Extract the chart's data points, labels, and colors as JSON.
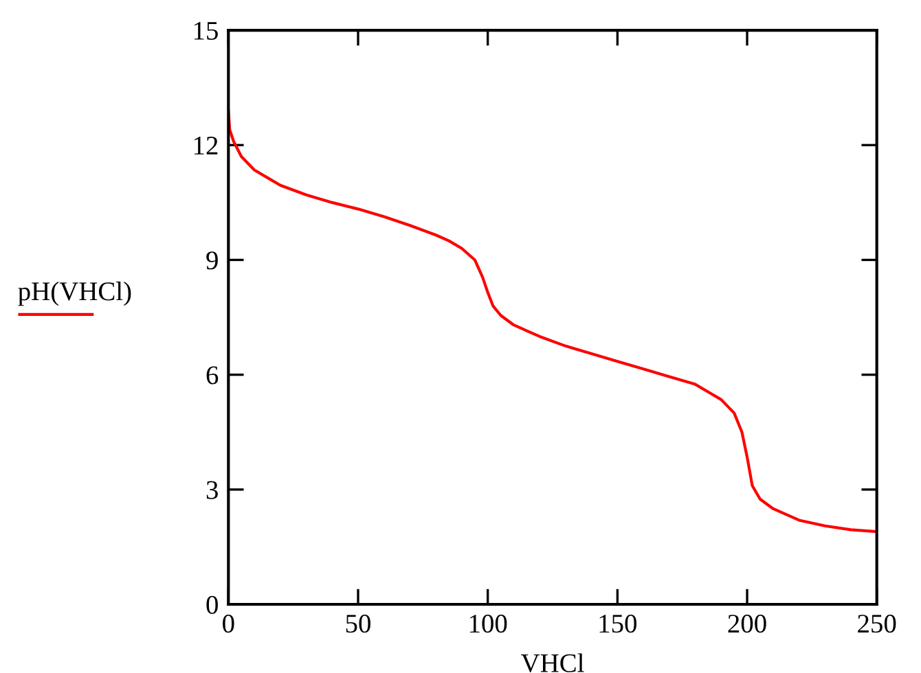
{
  "chart_data": {
    "type": "line",
    "xlabel": "VHCl",
    "ylabel": "pH(VHCl)",
    "xlim": [
      0,
      250
    ],
    "ylim": [
      0,
      15
    ],
    "xticks": [
      0,
      50,
      100,
      150,
      200,
      250
    ],
    "yticks": [
      0,
      3,
      6,
      9,
      12,
      15
    ],
    "grid": false,
    "legend": false,
    "marker": "none",
    "line_style": "solid",
    "series": [
      {
        "color": "#ff0000",
        "x": [
          0,
          0.5,
          2,
          5,
          10,
          15,
          20,
          30,
          40,
          50,
          60,
          70,
          80,
          85,
          90,
          95,
          98,
          100,
          102,
          105,
          110,
          120,
          130,
          140,
          150,
          160,
          170,
          180,
          185,
          190,
          195,
          198,
          200,
          202,
          205,
          210,
          220,
          230,
          240,
          250
        ],
        "values": [
          12.9,
          12.4,
          12.1,
          11.7,
          11.35,
          11.15,
          10.95,
          10.7,
          10.5,
          10.33,
          10.13,
          9.9,
          9.65,
          9.5,
          9.3,
          9.0,
          8.55,
          8.15,
          7.8,
          7.55,
          7.3,
          7.0,
          6.75,
          6.55,
          6.35,
          6.15,
          5.95,
          5.75,
          5.55,
          5.35,
          5.0,
          4.5,
          3.85,
          3.1,
          2.75,
          2.5,
          2.2,
          2.05,
          1.95,
          1.9
        ]
      }
    ]
  }
}
